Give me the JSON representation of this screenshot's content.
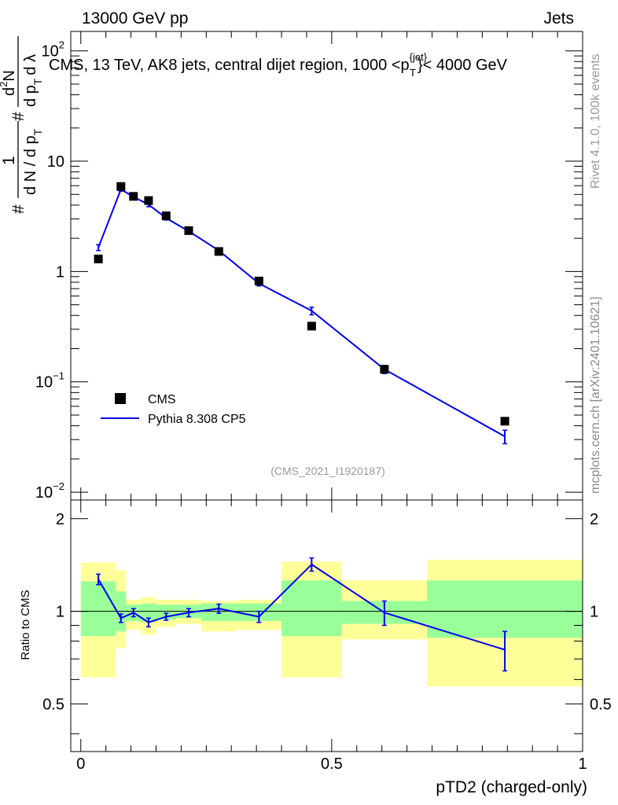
{
  "header": {
    "left_label": "13000 GeV pp",
    "right_label": "Jets"
  },
  "side": {
    "rivet_label": "Rivet 4.1.0,  100k events",
    "mcplots_label": "mcplots.cern.ch [arXiv:2401.10621]"
  },
  "chart_data": [
    {
      "type": "scatter",
      "panel": "main",
      "title": "CMS, 13 TeV, AK8 jets, central dijet region, 1000 <p",
      "title_sup": "{jet}",
      "title_sub": "T",
      "title_end": "}< 4000 GeV",
      "yscale": "log",
      "ylim": [
        0.0085,
        150
      ],
      "xlim": [
        -0.02,
        1.0
      ],
      "ytick_labels": [
        {
          "value": 100,
          "base": "10",
          "exp": "2"
        },
        {
          "value": 10,
          "base": "10",
          "exp": ""
        },
        {
          "value": 1,
          "base": "1",
          "exp": ""
        },
        {
          "value": 0.1,
          "base": "10",
          "exp": "−1"
        },
        {
          "value": 0.01,
          "base": "10",
          "exp": "−2"
        }
      ],
      "ylabel": {
        "hash1": "#",
        "one": "1",
        "denominator": "d N / d p",
        "denominator_sub": "T",
        "hash2": "#",
        "numerator": "d",
        "numerator_sup": "2",
        "numerator_end": "N",
        "numerator_den": "d p",
        "numerator_den_sub": "T",
        "numerator_den_end": "d λ"
      },
      "watermark": "(CMS_2021_I1920187)",
      "legend": {
        "position": "bottom-left",
        "entries": [
          "CMS",
          "Pythia 8.308 CP5"
        ]
      },
      "series": [
        {
          "name": "CMS",
          "style": "markers",
          "color": "#000000",
          "x": [
            0.035,
            0.08,
            0.105,
            0.135,
            0.17,
            0.215,
            0.275,
            0.355,
            0.46,
            0.605,
            0.845
          ],
          "y": [
            1.3,
            5.9,
            4.8,
            4.4,
            3.2,
            2.35,
            1.52,
            0.82,
            0.32,
            0.13,
            0.044
          ]
        },
        {
          "name": "Pythia 8.308 CP5",
          "style": "line",
          "color": "#0000ee",
          "x": [
            0.035,
            0.08,
            0.105,
            0.135,
            0.17,
            0.215,
            0.275,
            0.355,
            0.46,
            0.605,
            0.845
          ],
          "y": [
            1.65,
            5.55,
            4.75,
            4.05,
            3.05,
            2.32,
            1.55,
            0.78,
            0.44,
            0.13,
            0.032
          ],
          "err": [
            0.1,
            0.2,
            0.15,
            0.18,
            0.12,
            0.08,
            0.06,
            0.04,
            0.035,
            0.011,
            0.0045
          ]
        }
      ]
    },
    {
      "type": "line",
      "panel": "ratio",
      "ylabel": "Ratio to CMS",
      "xlabel": "pTD2 (charged-only)",
      "ylim": [
        0.35,
        2.3
      ],
      "xlim": [
        -0.02,
        1.0
      ],
      "xtick_labels": [
        {
          "value": 0,
          "label": "0"
        },
        {
          "value": 0.5,
          "label": "0.5"
        },
        {
          "value": 1,
          "label": "1"
        }
      ],
      "ytick_labels": [
        {
          "value": 2,
          "label": "2"
        },
        {
          "value": 1,
          "label": "1"
        },
        {
          "value": 0.5,
          "label": "0.5"
        }
      ],
      "bands": [
        {
          "x0": 0.0,
          "x1": 0.07,
          "outer": [
            0.61,
            1.44
          ],
          "inner": [
            0.83,
            1.25
          ]
        },
        {
          "x0": 0.07,
          "x1": 0.09,
          "outer": [
            0.76,
            1.36
          ],
          "inner": [
            0.86,
            1.16
          ]
        },
        {
          "x0": 0.09,
          "x1": 0.12,
          "outer": [
            0.87,
            1.09
          ],
          "inner": [
            0.93,
            1.05
          ]
        },
        {
          "x0": 0.12,
          "x1": 0.15,
          "outer": [
            0.84,
            1.11
          ],
          "inner": [
            0.92,
            1.06
          ]
        },
        {
          "x0": 0.15,
          "x1": 0.19,
          "outer": [
            0.89,
            1.09
          ],
          "inner": [
            0.94,
            1.05
          ]
        },
        {
          "x0": 0.19,
          "x1": 0.24,
          "outer": [
            0.91,
            1.09
          ],
          "inner": [
            0.95,
            1.05
          ]
        },
        {
          "x0": 0.24,
          "x1": 0.31,
          "outer": [
            0.86,
            1.08
          ],
          "inner": [
            0.93,
            1.06
          ]
        },
        {
          "x0": 0.31,
          "x1": 0.4,
          "outer": [
            0.87,
            1.09
          ],
          "inner": [
            0.93,
            1.06
          ]
        },
        {
          "x0": 0.4,
          "x1": 0.52,
          "outer": [
            0.61,
            1.45
          ],
          "inner": [
            0.83,
            1.26
          ]
        },
        {
          "x0": 0.52,
          "x1": 0.69,
          "outer": [
            0.81,
            1.26
          ],
          "inner": [
            0.91,
            1.08
          ]
        },
        {
          "x0": 0.69,
          "x1": 1.0,
          "outer": [
            0.57,
            1.47
          ],
          "inner": [
            0.82,
            1.26
          ]
        }
      ],
      "reference_line": 1,
      "series": [
        {
          "name": "Pythia 8.308 CP5",
          "color": "#0000ee",
          "x": [
            0.035,
            0.08,
            0.105,
            0.135,
            0.17,
            0.215,
            0.275,
            0.355,
            0.46,
            0.605,
            0.845
          ],
          "y": [
            1.27,
            0.95,
            0.99,
            0.92,
            0.96,
            0.99,
            1.02,
            0.96,
            1.42,
            0.99,
            0.75
          ],
          "err": [
            0.05,
            0.03,
            0.03,
            0.03,
            0.025,
            0.03,
            0.035,
            0.04,
            0.07,
            0.09,
            0.11
          ]
        }
      ]
    }
  ]
}
